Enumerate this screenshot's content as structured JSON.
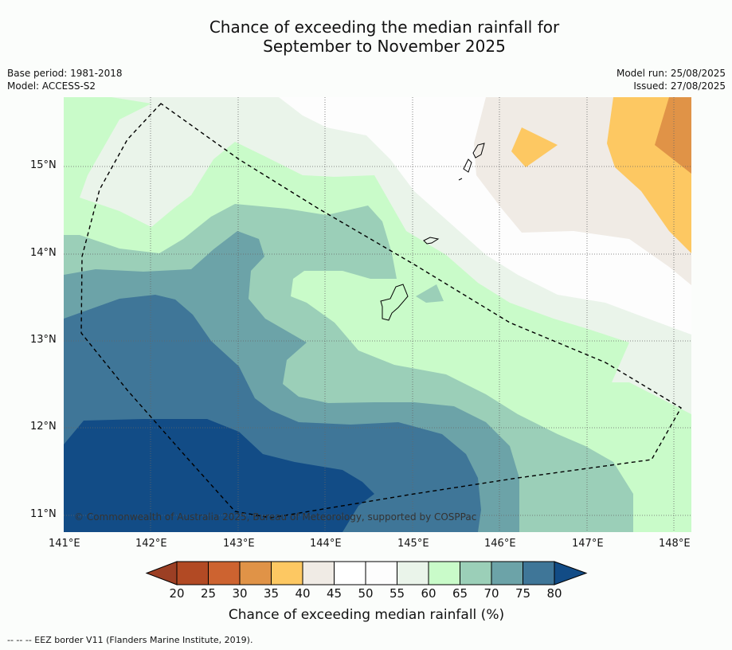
{
  "title": {
    "line1": "Chance of exceeding the median rainfall for",
    "line2": "September to November 2025"
  },
  "meta": {
    "base_period": "Base period: 1981-2018",
    "model": "Model: ACCESS-S2",
    "model_run": "Model run: 25/08/2025",
    "issued": "Issued: 27/08/2025"
  },
  "map": {
    "lat_labels": [
      "15°N",
      "14°N",
      "13°N",
      "12°N",
      "11°N"
    ],
    "lon_labels": [
      "141°E",
      "142°E",
      "143°E",
      "144°E",
      "145°E",
      "146°E",
      "147°E",
      "148°E"
    ],
    "copyright": "© Commonwealth of Australia 2025, Bureau of Meteorology, supported by COSPPac"
  },
  "colorbar": {
    "title": "Chance of exceeding median rainfall (%)",
    "ticks": [
      "20",
      "25",
      "30",
      "35",
      "40",
      "45",
      "50",
      "55",
      "60",
      "65",
      "70",
      "75",
      "80"
    ],
    "colors": [
      "#b24a24",
      "#cd6330",
      "#e09347",
      "#fdc862",
      "#f0ebe5",
      "#ffffff",
      "#fdfdfd",
      "#eaf4ea",
      "#c9fbc9",
      "#9bcfb8",
      "#6ca3a8",
      "#3f7698"
    ],
    "under_color": "#9c3f24",
    "over_color": "#124c86"
  },
  "footer": {
    "legend": "--  --  -- EEZ border V11 (Flanders Marine Institute, 2019)."
  }
}
